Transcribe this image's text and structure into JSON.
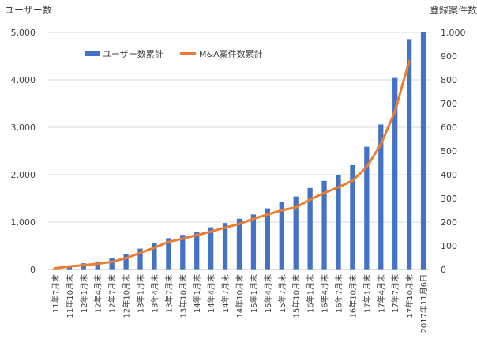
{
  "chart_data": {
    "type": "bar+line",
    "title": "",
    "left_axis_label": "ユーザー数",
    "right_axis_label": "登録案件数",
    "left_ylim": [
      0,
      5000
    ],
    "left_ticks": [
      "0",
      "1,000",
      "2,000",
      "3,000",
      "4,000",
      "5,000"
    ],
    "right_ylim": [
      0,
      1000
    ],
    "right_ticks": [
      "0",
      "100",
      "200",
      "300",
      "400",
      "500",
      "600",
      "700",
      "800",
      "900",
      "1,000"
    ],
    "grid": true,
    "legend_position": "top-left",
    "categories": [
      "11年7月末",
      "11年10月末",
      "12年1月末",
      "12年4月末",
      "12年7月末",
      "12年10月末",
      "13年1月末",
      "13年4月末",
      "13年7月末",
      "13年10月末",
      "14年1月末",
      "14年4月末",
      "14年7月末",
      "14年10月末",
      "15年1月末",
      "15年4月末",
      "15年7月末",
      "15年10月末",
      "16年1月末",
      "16年4月末",
      "16年7月末",
      "16年10月末",
      "17年1月末",
      "17年4月末",
      "17年7月末",
      "17年10月末",
      "2017年11月6日"
    ],
    "series": [
      {
        "name": "ユーザー数累計",
        "type": "bar",
        "axis": "left",
        "color": "#4472C4",
        "values": [
          20,
          60,
          130,
          170,
          240,
          330,
          440,
          560,
          660,
          730,
          800,
          890,
          980,
          1070,
          1160,
          1290,
          1420,
          1540,
          1720,
          1870,
          2000,
          2200,
          2590,
          3060,
          4040,
          4860,
          5000
        ]
      },
      {
        "name": "M&A案件数累計",
        "type": "line",
        "axis": "right",
        "color": "#ED7D31",
        "values": [
          5,
          13,
          18,
          24,
          32,
          48,
          70,
          92,
          116,
          130,
          145,
          160,
          177,
          192,
          214,
          232,
          250,
          262,
          295,
          323,
          347,
          375,
          432,
          528,
          668,
          879,
          null
        ]
      }
    ]
  }
}
